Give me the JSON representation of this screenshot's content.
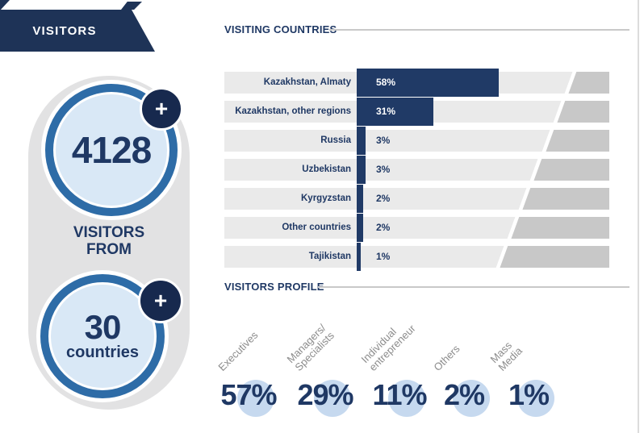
{
  "banner": {
    "label": "VISITORS"
  },
  "summary": {
    "visitors_count": "4128",
    "plus": "+",
    "between_label": "VISITORS\nFROM",
    "countries_count": "30",
    "countries_label": "countries"
  },
  "visiting_countries": {
    "title": "VISITING COUNTRIES",
    "rows": [
      {
        "label": "Kazakhstan, Almaty",
        "value": "58%"
      },
      {
        "label": "Kazakhstan, other regions",
        "value": "31%"
      },
      {
        "label": "Russia",
        "value": "3%"
      },
      {
        "label": "Uzbekistan",
        "value": "3%"
      },
      {
        "label": "Kyrgyzstan",
        "value": "2%"
      },
      {
        "label": "Other countries",
        "value": "2%"
      },
      {
        "label": "Tajikistan",
        "value": "1%"
      }
    ]
  },
  "visitors_profile": {
    "title": "VISITORS PROFILE",
    "items": [
      {
        "label": "Executives",
        "value": "57%"
      },
      {
        "label": "Managers/\nSpecialists",
        "value": "29%"
      },
      {
        "label": "Individual\nentrepreneur",
        "value": "11%"
      },
      {
        "label": "Others",
        "value": "2%"
      },
      {
        "label": "Mass\nMedia",
        "value": "1%"
      }
    ]
  },
  "colors": {
    "navy": "#203a66",
    "banner_navy": "#1e3357",
    "badge_navy": "#17294e",
    "ring_blue": "#2e6ca7",
    "light_blue_fill": "#d9e8f6",
    "profile_circle_blue": "#c6d9ef",
    "row_gray": "#eaeaea",
    "diagonal_gray": "#c8c8c8",
    "capsule_gray": "#e2e2e3",
    "label_gray": "#8c8c8c",
    "text_navy": "#1f3864"
  },
  "chart_data": [
    {
      "type": "bar",
      "orientation": "horizontal",
      "title": "VISITING COUNTRIES",
      "categories": [
        "Kazakhstan, Almaty",
        "Kazakhstan, other regions",
        "Russia",
        "Uzbekistan",
        "Kyrgyzstan",
        "Other countries",
        "Tajikistan"
      ],
      "values": [
        58,
        31,
        3,
        3,
        2,
        2,
        1
      ],
      "unit": "%",
      "xlim": [
        0,
        100
      ],
      "grid": false,
      "legend": false,
      "bar_color": "#203a66",
      "value_labels": "inside-or-right-of-bar"
    },
    {
      "type": "bar",
      "orientation": "vertical-big-number",
      "title": "VISITORS PROFILE",
      "categories": [
        "Executives",
        "Managers/ Specialists",
        "Individual entrepreneur",
        "Others",
        "Mass Media"
      ],
      "values": [
        57,
        29,
        11,
        2,
        1
      ],
      "unit": "%",
      "grid": false,
      "legend": false,
      "note": "percentages shown as large numbers over light blue circles, category labels rotated 45deg"
    },
    {
      "type": "table",
      "title": "VISITORS summary",
      "categories": [
        "visitors",
        "countries"
      ],
      "values": [
        4128,
        30
      ]
    }
  ]
}
